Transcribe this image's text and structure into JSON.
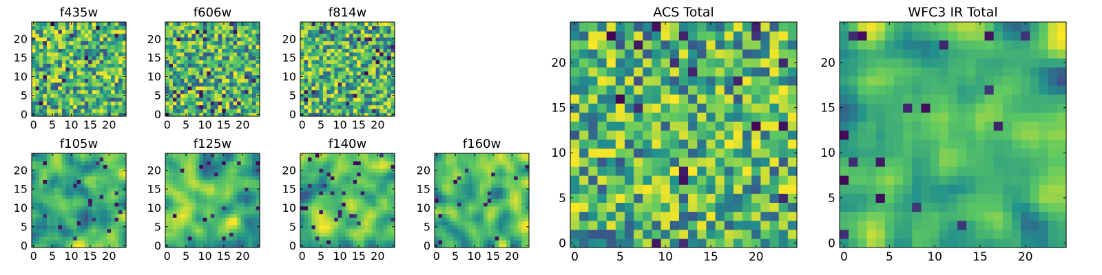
{
  "chart_data": {
    "type": "heatmap",
    "colormap": [
      "#440154",
      "#3b528b",
      "#21918c",
      "#5ec962",
      "#fde725"
    ],
    "panels": [
      {
        "title": "f435w",
        "grid_size": 25,
        "xlim": [
          -0.5,
          24.5
        ],
        "ylim": [
          -0.5,
          24.5
        ],
        "xticks": [
          0,
          5,
          10,
          15,
          20
        ],
        "yticks": [
          0,
          5,
          10,
          15,
          20
        ],
        "seed": 11,
        "texture": "noise"
      },
      {
        "title": "f606w",
        "grid_size": 25,
        "xlim": [
          -0.5,
          24.5
        ],
        "ylim": [
          -0.5,
          24.5
        ],
        "xticks": [
          0,
          5,
          10,
          15,
          20
        ],
        "yticks": [
          0,
          5,
          10,
          15,
          20
        ],
        "seed": 23,
        "texture": "noise"
      },
      {
        "title": "f814w",
        "grid_size": 25,
        "xlim": [
          -0.5,
          24.5
        ],
        "ylim": [
          -0.5,
          24.5
        ],
        "xticks": [
          0,
          5,
          10,
          15,
          20
        ],
        "yticks": [
          0,
          5,
          10,
          15,
          20
        ],
        "seed": 37,
        "texture": "noise"
      },
      {
        "title": "f105w",
        "grid_size": 25,
        "xlim": [
          -0.5,
          24.5
        ],
        "ylim": [
          -0.5,
          24.5
        ],
        "xticks": [
          0,
          5,
          10,
          15,
          20
        ],
        "yticks": [
          0,
          5,
          10,
          15,
          20
        ],
        "seed": 41,
        "texture": "smooth"
      },
      {
        "title": "f125w",
        "grid_size": 25,
        "xlim": [
          -0.5,
          24.5
        ],
        "ylim": [
          -0.5,
          24.5
        ],
        "xticks": [
          0,
          5,
          10,
          15,
          20
        ],
        "yticks": [
          0,
          5,
          10,
          15,
          20
        ],
        "seed": 53,
        "texture": "smooth"
      },
      {
        "title": "f140w",
        "grid_size": 25,
        "xlim": [
          -0.5,
          24.5
        ],
        "ylim": [
          -0.5,
          24.5
        ],
        "xticks": [
          0,
          5,
          10,
          15,
          20
        ],
        "yticks": [
          0,
          5,
          10,
          15,
          20
        ],
        "seed": 67,
        "texture": "smooth"
      },
      {
        "title": "f160w",
        "grid_size": 25,
        "xlim": [
          -0.5,
          24.5
        ],
        "ylim": [
          -0.5,
          24.5
        ],
        "xticks": [
          0,
          5,
          10,
          15,
          20
        ],
        "yticks": [
          0,
          5,
          10,
          15,
          20
        ],
        "seed": 79,
        "texture": "smooth"
      },
      {
        "title": "ACS Total",
        "grid_size": 25,
        "xlim": [
          -0.5,
          24.5
        ],
        "ylim": [
          -0.5,
          24.5
        ],
        "xticks": [
          0,
          5,
          10,
          15,
          20
        ],
        "yticks": [
          0,
          5,
          10,
          15,
          20
        ],
        "seed": 97,
        "texture": "noise"
      },
      {
        "title": "WFC3 IR Total",
        "grid_size": 25,
        "xlim": [
          -0.5,
          24.5
        ],
        "ylim": [
          -0.5,
          24.5
        ],
        "xticks": [
          0,
          5,
          10,
          15,
          20
        ],
        "yticks": [
          0,
          5,
          10,
          15,
          20
        ],
        "seed": 113,
        "texture": "smooth"
      }
    ]
  }
}
